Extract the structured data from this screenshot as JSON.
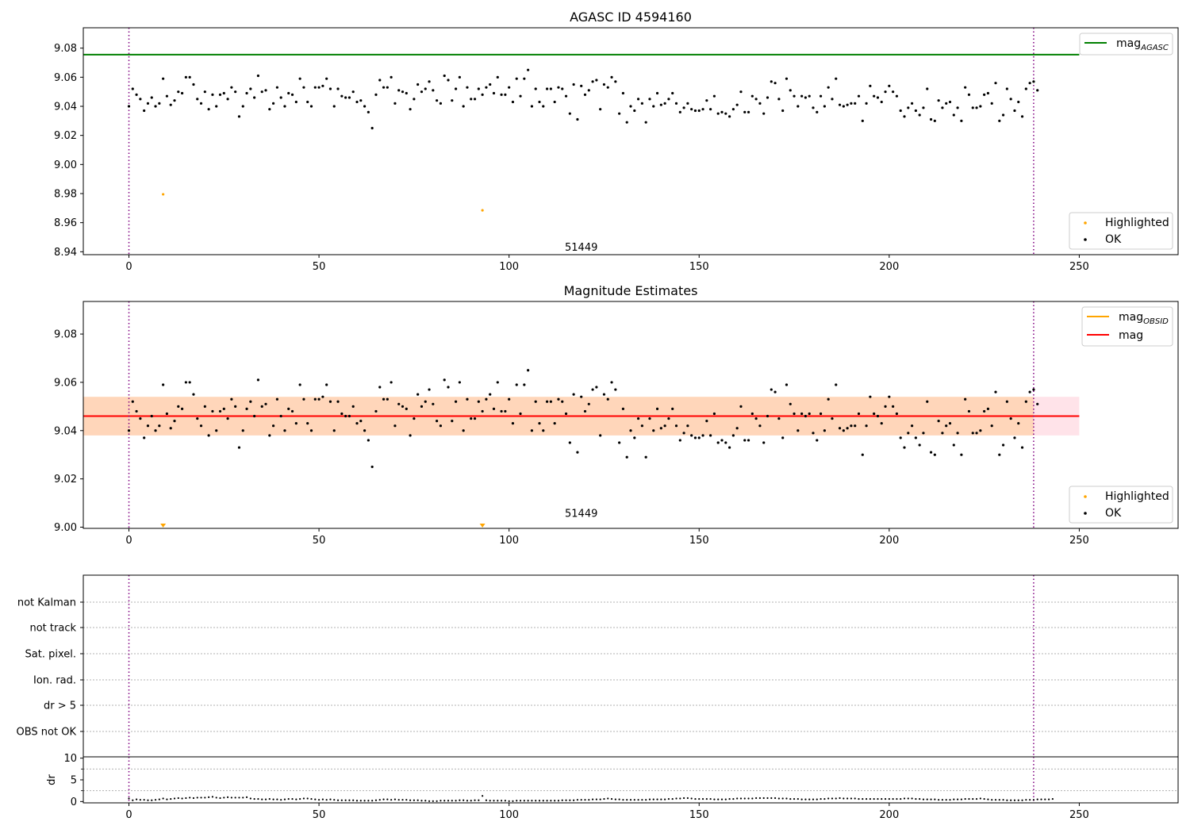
{
  "chart_data": [
    {
      "type": "scatter",
      "title": "AGASC ID 4594160",
      "xlim": [
        -12,
        276
      ],
      "ylim": [
        8.938,
        9.094
      ],
      "xticks": [
        0,
        50,
        100,
        150,
        200,
        250
      ],
      "yticks": [
        8.94,
        8.96,
        8.98,
        9.0,
        9.02,
        9.04,
        9.06,
        9.08
      ],
      "ytick_labels": [
        "8.94",
        "8.96",
        "8.98",
        "9.00",
        "9.02",
        "9.04",
        "9.06",
        "9.08"
      ],
      "obs_boundaries": [
        0,
        238
      ],
      "obsid_label": {
        "text": "51449",
        "x": 119,
        "y": 8.943
      },
      "hline": {
        "y": 9.0755,
        "x0": -12,
        "x1": 250,
        "color": "#008000"
      },
      "legend_top": [
        {
          "name": "mag",
          "sub": "AGASC",
          "color": "#008000"
        }
      ],
      "legend_bottom": [
        {
          "name": "Highlighted",
          "color": "#ffa500"
        },
        {
          "name": "OK",
          "color": "#000000"
        }
      ],
      "highlighted": [
        [
          9,
          8.9795
        ],
        [
          93,
          8.9685
        ]
      ]
    },
    {
      "type": "scatter",
      "title": "Magnitude Estimates",
      "xlim": [
        -12,
        276
      ],
      "ylim": [
        8.9995,
        9.0935
      ],
      "xticks": [
        0,
        50,
        100,
        150,
        200,
        250
      ],
      "yticks": [
        9.0,
        9.02,
        9.04,
        9.06,
        9.08
      ],
      "ytick_labels": [
        "9.00",
        "9.02",
        "9.04",
        "9.06",
        "9.08"
      ],
      "obs_boundaries": [
        0,
        238
      ],
      "obsid_label": {
        "text": "51449",
        "x": 119,
        "y": 9.002
      },
      "mag_line": {
        "y": 9.046,
        "x0": -12,
        "x1": 250,
        "color": "#ff0000"
      },
      "mag_band": {
        "y0": 9.038,
        "y1": 9.054,
        "x0": -12,
        "x1": 250
      },
      "obsid_band": {
        "y0": 9.038,
        "y1": 9.054,
        "x0": -12,
        "x1": 238
      },
      "obsid_line": {
        "y": 9.046,
        "color": "#ffa500"
      },
      "legend_top": [
        {
          "name": "mag",
          "sub": "OBSID",
          "color": "#ffa500"
        },
        {
          "name": "mag",
          "sub": "",
          "color": "#ff0000"
        }
      ],
      "legend_bottom": [
        {
          "name": "Highlighted",
          "color": "#ffa500"
        },
        {
          "name": "OK",
          "color": "#000000"
        }
      ],
      "highlighted_markers": [
        9,
        93
      ]
    },
    {
      "type": "scatter",
      "xlim": [
        -12,
        276
      ],
      "flag_labels": [
        "not Kalman",
        "not track",
        "Sat. pixel.",
        "Ion. rad.",
        "dr > 5",
        "OBS not OK"
      ],
      "obs_boundaries": [
        0,
        238
      ]
    },
    {
      "type": "scatter",
      "ylabel": "dr",
      "xlim": [
        -12,
        276
      ],
      "ylim": [
        -0.3,
        10.3
      ],
      "yticks": [
        0,
        5,
        10
      ],
      "ytick_labels": [
        "0",
        "5",
        "10"
      ],
      "xticks": [
        0,
        50,
        100,
        150,
        200,
        250
      ],
      "obs_boundaries": [
        0,
        238
      ],
      "values_note_x": [
        0,
        238
      ]
    }
  ],
  "ok_mag": [
    9.04,
    9.052,
    9.048,
    9.045,
    9.037,
    9.042,
    9.046,
    9.04,
    9.042,
    9.059,
    9.047,
    9.041,
    9.044,
    9.05,
    9.049,
    9.06,
    9.06,
    9.055,
    9.045,
    9.042,
    9.05,
    9.038,
    9.048,
    9.04,
    9.048,
    9.049,
    9.045,
    9.053,
    9.05,
    9.033,
    9.04,
    9.049,
    9.052,
    9.046,
    9.061,
    9.05,
    9.051,
    9.038,
    9.042,
    9.053,
    9.046,
    9.04,
    9.049,
    9.048,
    9.043,
    9.059,
    9.053,
    9.043,
    9.04,
    9.053,
    9.053,
    9.054,
    9.059,
    9.052,
    9.04,
    9.052,
    9.047,
    9.046,
    9.046,
    9.05,
    9.043,
    9.044,
    9.04,
    9.036,
    9.025,
    9.048,
    9.058,
    9.053,
    9.053,
    9.06,
    9.042,
    9.051,
    9.05,
    9.049,
    9.038,
    9.045,
    9.055,
    9.05,
    9.052,
    9.057,
    9.051,
    9.044,
    9.042,
    9.061,
    9.058,
    9.044,
    9.052,
    9.06,
    9.04,
    9.053,
    9.045,
    9.045,
    9.052,
    9.048,
    9.053,
    9.055,
    9.049,
    9.06,
    9.048,
    9.048,
    9.053,
    9.043,
    9.059,
    9.047,
    9.059,
    9.065,
    9.04,
    9.052,
    9.043,
    9.04,
    9.052,
    9.052,
    9.043,
    9.053,
    9.052,
    9.047,
    9.035,
    9.055,
    9.031,
    9.054,
    9.048,
    9.051,
    9.057,
    9.058,
    9.038,
    9.055,
    9.053,
    9.06,
    9.057,
    9.035,
    9.049,
    9.029,
    9.04,
    9.037,
    9.045,
    9.042,
    9.029,
    9.045,
    9.04,
    9.049,
    9.041,
    9.042,
    9.045,
    9.049,
    9.042,
    9.036,
    9.039,
    9.042,
    9.038,
    9.037,
    9.037,
    9.038,
    9.044,
    9.038,
    9.047,
    9.035,
    9.036,
    9.035,
    9.033,
    9.038,
    9.041,
    9.05,
    9.036,
    9.036,
    9.047,
    9.045,
    9.042,
    9.035,
    9.046,
    9.057,
    9.056,
    9.045,
    9.037,
    9.059,
    9.051,
    9.047,
    9.04,
    9.047,
    9.046,
    9.047,
    9.039,
    9.036,
    9.047,
    9.04,
    9.053,
    9.045,
    9.059,
    9.041,
    9.04,
    9.041,
    9.042,
    9.042,
    9.047,
    9.03,
    9.042,
    9.054,
    9.047,
    9.046,
    9.043,
    9.05,
    9.054,
    9.05,
    9.047,
    9.037,
    9.033,
    9.039,
    9.042,
    9.037,
    9.034,
    9.039,
    9.052,
    9.031,
    9.03,
    9.044,
    9.039,
    9.042,
    9.043,
    9.034,
    9.039,
    9.03,
    9.053,
    9.048,
    9.039,
    9.039,
    9.04,
    9.048,
    9.049,
    9.042,
    9.056,
    9.03,
    9.034,
    9.052,
    9.045,
    9.037,
    9.043,
    9.033,
    9.052,
    9.056,
    9.057,
    9.051
  ],
  "dr": [
    0.7,
    0.3,
    0.5,
    0.4,
    0.4,
    0.3,
    0.3,
    0.4,
    0.5,
    0.7,
    0.5,
    0.6,
    0.7,
    0.8,
    0.7,
    0.8,
    0.9,
    0.8,
    0.9,
    0.9,
    0.9,
    1.0,
    1.1,
    0.9,
    0.8,
    0.9,
    1.0,
    0.9,
    0.9,
    0.9,
    0.9,
    1.0,
    0.7,
    0.6,
    0.6,
    0.5,
    0.5,
    0.6,
    0.5,
    0.5,
    0.4,
    0.5,
    0.6,
    0.6,
    0.5,
    0.6,
    0.7,
    0.7,
    0.6,
    0.5,
    0.4,
    0.5,
    0.4,
    0.5,
    0.4,
    0.3,
    0.3,
    0.3,
    0.3,
    0.3,
    0.2,
    0.2,
    0.2,
    0.2,
    0.2,
    0.3,
    0.4,
    0.5,
    0.5,
    0.4,
    0.5,
    0.4,
    0.4,
    0.4,
    0.3,
    0.3,
    0.3,
    0.2,
    0.2,
    0.1,
    0.1,
    0.1,
    0.2,
    0.2,
    0.2,
    0.2,
    0.2,
    0.3,
    0.3,
    0.2,
    0.2,
    0.3,
    0.3,
    1.3,
    0.3,
    0.2,
    0.2,
    0.2,
    0.2,
    0.2,
    0.1,
    0.1,
    0.2,
    0.2,
    0.2,
    0.2,
    0.2,
    0.2,
    0.2,
    0.2,
    0.2,
    0.2,
    0.2,
    0.2,
    0.3,
    0.3,
    0.3,
    0.3,
    0.4,
    0.4,
    0.4,
    0.4,
    0.5,
    0.5,
    0.5,
    0.6,
    0.7,
    0.6,
    0.5,
    0.5,
    0.4,
    0.4,
    0.4,
    0.4,
    0.4,
    0.4,
    0.4,
    0.5,
    0.5,
    0.5,
    0.5,
    0.5,
    0.6,
    0.6,
    0.7,
    0.7,
    0.8,
    0.8,
    0.7,
    0.6,
    0.6,
    0.6,
    0.6,
    0.6,
    0.5,
    0.5,
    0.5,
    0.5,
    0.6,
    0.6,
    0.7,
    0.7,
    0.7,
    0.7,
    0.7,
    0.8,
    0.8,
    0.8,
    0.8,
    0.8,
    0.8,
    0.7,
    0.7,
    0.7,
    0.6,
    0.6,
    0.6,
    0.5,
    0.5,
    0.5,
    0.5,
    0.5,
    0.6,
    0.6,
    0.7,
    0.7,
    0.7,
    0.8,
    0.7,
    0.7,
    0.7,
    0.7,
    0.6,
    0.6,
    0.6,
    0.6,
    0.6,
    0.6,
    0.6,
    0.6,
    0.6,
    0.6,
    0.6,
    0.6,
    0.7,
    0.7,
    0.7,
    0.6,
    0.6,
    0.5,
    0.5,
    0.5,
    0.5,
    0.4,
    0.4,
    0.4,
    0.4,
    0.5,
    0.5,
    0.5,
    0.6,
    0.6,
    0.6,
    0.6,
    0.7,
    0.6,
    0.5,
    0.4,
    0.4,
    0.4,
    0.4,
    0.3,
    0.3,
    0.3,
    0.3,
    0.3,
    0.4,
    0.4,
    0.4,
    0.5,
    0.5,
    0.5,
    0.5,
    0.6
  ]
}
